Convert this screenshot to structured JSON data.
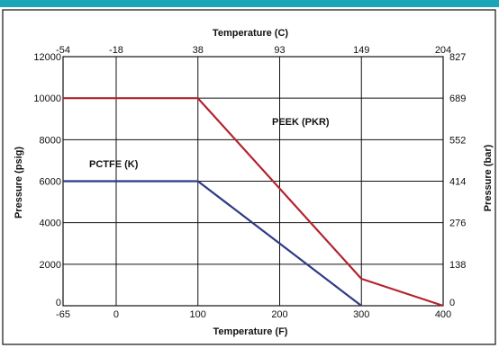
{
  "chart_data": {
    "type": "line",
    "x_bottom": {
      "title": "Temperature (F)",
      "range": [
        -65,
        400
      ],
      "ticks": [
        -65,
        0,
        100,
        200,
        300,
        400
      ],
      "tick_labels": [
        "-65",
        "0",
        "100",
        "200",
        "300",
        "400"
      ]
    },
    "x_top": {
      "title": "Temperature (C)",
      "tick_labels": [
        "-54",
        "-18",
        "38",
        "93",
        "149",
        "204"
      ],
      "tick_values_f": [
        -65,
        0,
        100,
        200,
        300,
        400
      ]
    },
    "y_left": {
      "title": "Pressure (psig)",
      "range": [
        0,
        12000
      ],
      "ticks": [
        0,
        2000,
        4000,
        6000,
        8000,
        10000,
        12000
      ],
      "tick_labels": [
        "0",
        "2000",
        "4000",
        "6000",
        "8000",
        "10000",
        "12000"
      ]
    },
    "y_right": {
      "title": "Pressure (bar)",
      "tick_labels": [
        "0",
        "138",
        "276",
        "414",
        "552",
        "689",
        "827"
      ],
      "tick_values_psig": [
        0,
        2000,
        4000,
        6000,
        8000,
        10000,
        12000
      ]
    },
    "grid": true,
    "series": [
      {
        "name": "PEEK (PKR)",
        "color": "#b3232e",
        "points": [
          [
            -65,
            10000
          ],
          [
            100,
            10000
          ],
          [
            300,
            1300
          ],
          [
            400,
            0
          ]
        ]
      },
      {
        "name": "PCTFE (K)",
        "color": "#2e3a86",
        "points": [
          [
            -65,
            6000
          ],
          [
            100,
            6000
          ],
          [
            300,
            0
          ]
        ]
      }
    ]
  }
}
